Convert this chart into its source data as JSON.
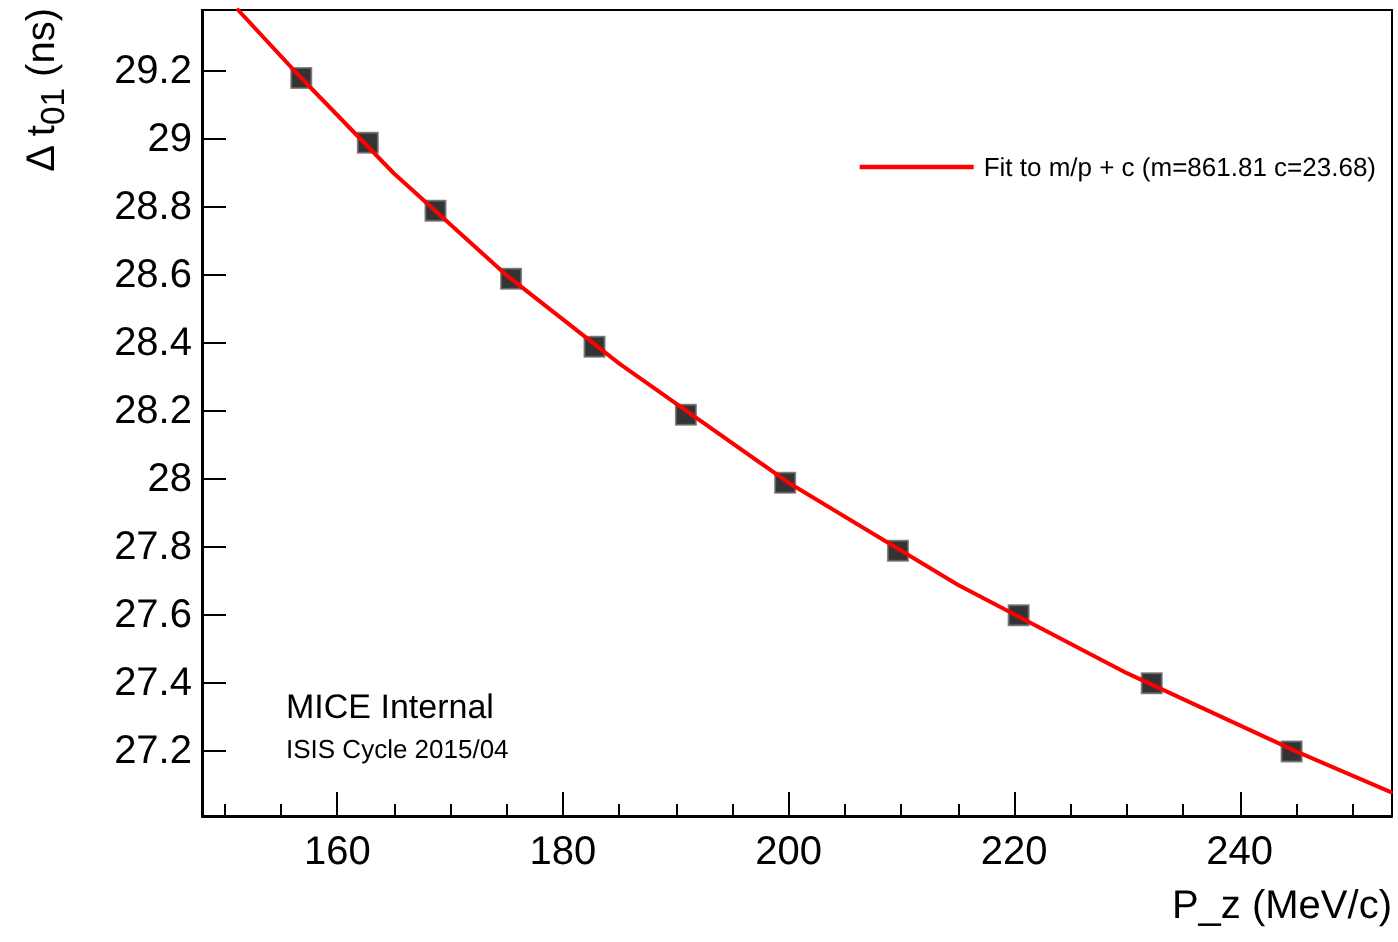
{
  "chart_data": {
    "type": "scatter",
    "xlabel": "P_z (MeV/c)",
    "ylabel": "Δ t$_{01}$ (ns)",
    "xlim": [
      148,
      253.5
    ],
    "ylim": [
      27.01,
      29.38
    ],
    "xticks": [
      160,
      180,
      200,
      220,
      240
    ],
    "yticks": [
      27.2,
      27.4,
      27.6,
      27.8,
      28,
      28.2,
      28.4,
      28.6,
      28.8,
      29,
      29.2
    ],
    "grid": false,
    "legend": "top right",
    "marker": "square",
    "series": [
      {
        "color": "#000000",
        "x": [
          156.8,
          162.7,
          168.7,
          175.4,
          182.8,
          190.9,
          199.7,
          209.7,
          220.4,
          232.2,
          244.6
        ],
        "values": [
          29.18,
          28.99,
          28.79,
          28.59,
          28.39,
          28.19,
          27.99,
          27.79,
          27.6,
          27.4,
          27.2
        ]
      },
      {
        "type": "line",
        "name": "Fit to m/p + c (m=861.81 c=23.68)",
        "color": "#ff0000",
        "marker": "none",
        "line_style": "solid",
        "x": [
          151.2,
          156.8,
          165,
          175,
          185,
          200,
          215,
          230,
          245,
          253.4
        ],
        "values": [
          29.38,
          29.18,
          28.9,
          28.6,
          28.34,
          27.99,
          27.69,
          27.43,
          27.2,
          27.08
        ]
      }
    ],
    "annotations": [
      "MICE Internal",
      "ISIS Cycle 2015/04"
    ]
  }
}
